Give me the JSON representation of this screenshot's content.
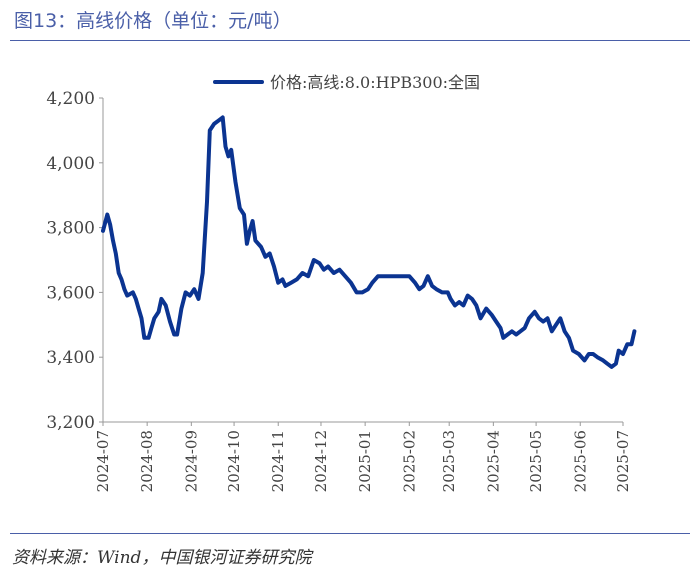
{
  "figure": {
    "title": "图13：高线价格（单位：元/吨）",
    "source": "资料来源：Wind，中国银河证券研究院"
  },
  "colors": {
    "line": "#0b3491",
    "rule": "#4a5fa8",
    "axis": "#999999"
  },
  "chart_data": {
    "type": "line",
    "title": "",
    "xlabel": "",
    "ylabel": "",
    "ylim": [
      3200,
      4200
    ],
    "yticks": [
      "3,200",
      "3,400",
      "3,600",
      "3,800",
      "4,000",
      "4,200"
    ],
    "ytick_values": [
      3200,
      3400,
      3600,
      3800,
      4000,
      4200
    ],
    "xticks": [
      "2024-07",
      "2024-08",
      "2024-09",
      "2024-10",
      "2024-11",
      "2024-12",
      "2025-01",
      "2025-02",
      "2025-03",
      "2025-04",
      "2025-05",
      "2025-06",
      "2025-07"
    ],
    "xtick_values": [
      "2024-07-01",
      "2024-08-01",
      "2024-09-01",
      "2024-10-01",
      "2024-11-01",
      "2024-12-01",
      "2025-01-01",
      "2025-02-01",
      "2025-03-01",
      "2025-04-01",
      "2025-05-01",
      "2025-06-01",
      "2025-07-01"
    ],
    "x_range": [
      "2024-07-01",
      "2025-07-01"
    ],
    "grid": false,
    "legend_position": "top-center",
    "series": [
      {
        "name": "价格:高线:8.0:HPB300:全国",
        "color": "#0b3491",
        "points": [
          [
            "2024-07-01",
            3790
          ],
          [
            "2024-07-04",
            3840
          ],
          [
            "2024-07-06",
            3810
          ],
          [
            "2024-07-08",
            3760
          ],
          [
            "2024-07-10",
            3720
          ],
          [
            "2024-07-12",
            3660
          ],
          [
            "2024-07-14",
            3640
          ],
          [
            "2024-07-16",
            3610
          ],
          [
            "2024-07-18",
            3590
          ],
          [
            "2024-07-22",
            3600
          ],
          [
            "2024-07-24",
            3580
          ],
          [
            "2024-07-26",
            3550
          ],
          [
            "2024-07-28",
            3520
          ],
          [
            "2024-07-30",
            3460
          ],
          [
            "2024-08-02",
            3460
          ],
          [
            "2024-08-04",
            3490
          ],
          [
            "2024-08-06",
            3520
          ],
          [
            "2024-08-09",
            3540
          ],
          [
            "2024-08-11",
            3580
          ],
          [
            "2024-08-14",
            3560
          ],
          [
            "2024-08-17",
            3510
          ],
          [
            "2024-08-20",
            3470
          ],
          [
            "2024-08-22",
            3470
          ],
          [
            "2024-08-25",
            3550
          ],
          [
            "2024-08-28",
            3600
          ],
          [
            "2024-08-31",
            3590
          ],
          [
            "2024-09-03",
            3610
          ],
          [
            "2024-09-06",
            3580
          ],
          [
            "2024-09-09",
            3660
          ],
          [
            "2024-09-12",
            3880
          ],
          [
            "2024-09-14",
            4100
          ],
          [
            "2024-09-17",
            4120
          ],
          [
            "2024-09-20",
            4130
          ],
          [
            "2024-09-23",
            4140
          ],
          [
            "2024-09-25",
            4050
          ],
          [
            "2024-09-27",
            4020
          ],
          [
            "2024-09-29",
            4040
          ],
          [
            "2024-10-02",
            3940
          ],
          [
            "2024-10-05",
            3860
          ],
          [
            "2024-10-08",
            3840
          ],
          [
            "2024-10-10",
            3750
          ],
          [
            "2024-10-12",
            3790
          ],
          [
            "2024-10-14",
            3820
          ],
          [
            "2024-10-16",
            3760
          ],
          [
            "2024-10-20",
            3740
          ],
          [
            "2024-10-23",
            3710
          ],
          [
            "2024-10-26",
            3720
          ],
          [
            "2024-10-29",
            3680
          ],
          [
            "2024-11-01",
            3630
          ],
          [
            "2024-11-04",
            3640
          ],
          [
            "2024-11-06",
            3620
          ],
          [
            "2024-11-10",
            3630
          ],
          [
            "2024-11-14",
            3640
          ],
          [
            "2024-11-18",
            3660
          ],
          [
            "2024-11-22",
            3650
          ],
          [
            "2024-11-26",
            3700
          ],
          [
            "2024-11-30",
            3690
          ],
          [
            "2024-12-03",
            3670
          ],
          [
            "2024-12-06",
            3680
          ],
          [
            "2024-12-10",
            3660
          ],
          [
            "2024-12-14",
            3670
          ],
          [
            "2024-12-18",
            3650
          ],
          [
            "2024-12-22",
            3630
          ],
          [
            "2024-12-26",
            3600
          ],
          [
            "2024-12-30",
            3600
          ],
          [
            "2025-01-03",
            3610
          ],
          [
            "2025-01-06",
            3630
          ],
          [
            "2025-01-10",
            3650
          ],
          [
            "2025-01-14",
            3650
          ],
          [
            "2025-01-20",
            3650
          ],
          [
            "2025-01-26",
            3650
          ],
          [
            "2025-02-01",
            3650
          ],
          [
            "2025-02-05",
            3630
          ],
          [
            "2025-02-08",
            3610
          ],
          [
            "2025-02-11",
            3620
          ],
          [
            "2025-02-14",
            3650
          ],
          [
            "2025-02-17",
            3620
          ],
          [
            "2025-02-20",
            3610
          ],
          [
            "2025-02-24",
            3600
          ],
          [
            "2025-02-28",
            3600
          ],
          [
            "2025-03-02",
            3580
          ],
          [
            "2025-03-05",
            3560
          ],
          [
            "2025-03-08",
            3570
          ],
          [
            "2025-03-11",
            3560
          ],
          [
            "2025-03-14",
            3590
          ],
          [
            "2025-03-17",
            3580
          ],
          [
            "2025-03-20",
            3560
          ],
          [
            "2025-03-23",
            3520
          ],
          [
            "2025-03-27",
            3550
          ],
          [
            "2025-03-31",
            3530
          ],
          [
            "2025-04-03",
            3510
          ],
          [
            "2025-04-06",
            3490
          ],
          [
            "2025-04-08",
            3460
          ],
          [
            "2025-04-11",
            3470
          ],
          [
            "2025-04-14",
            3480
          ],
          [
            "2025-04-17",
            3470
          ],
          [
            "2025-04-20",
            3480
          ],
          [
            "2025-04-23",
            3490
          ],
          [
            "2025-04-26",
            3520
          ],
          [
            "2025-04-30",
            3540
          ],
          [
            "2025-05-03",
            3520
          ],
          [
            "2025-05-06",
            3510
          ],
          [
            "2025-05-09",
            3520
          ],
          [
            "2025-05-12",
            3480
          ],
          [
            "2025-05-15",
            3500
          ],
          [
            "2025-05-18",
            3520
          ],
          [
            "2025-05-21",
            3480
          ],
          [
            "2025-05-24",
            3460
          ],
          [
            "2025-05-27",
            3420
          ],
          [
            "2025-05-31",
            3410
          ],
          [
            "2025-06-04",
            3390
          ],
          [
            "2025-06-07",
            3410
          ],
          [
            "2025-06-10",
            3410
          ],
          [
            "2025-06-13",
            3400
          ],
          [
            "2025-06-17",
            3390
          ],
          [
            "2025-06-20",
            3380
          ],
          [
            "2025-06-23",
            3370
          ],
          [
            "2025-06-26",
            3380
          ],
          [
            "2025-06-28",
            3420
          ],
          [
            "2025-07-01",
            3410
          ],
          [
            "2025-07-04",
            3440
          ],
          [
            "2025-07-07",
            3440
          ],
          [
            "2025-07-09",
            3480
          ]
        ]
      }
    ]
  }
}
